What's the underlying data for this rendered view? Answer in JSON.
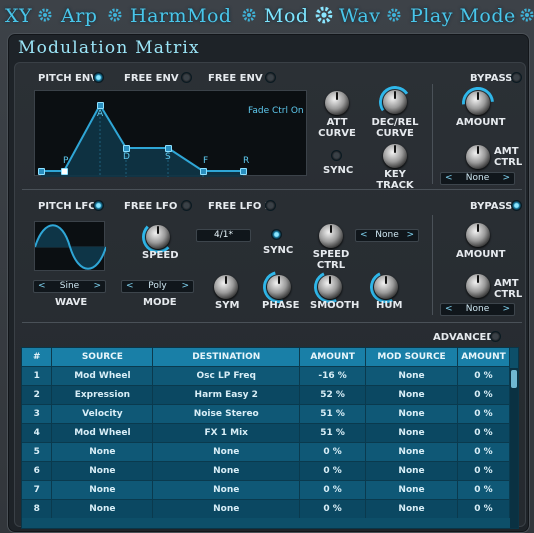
{
  "tabs": [
    {
      "label": "XY"
    },
    {
      "label": "Arp"
    },
    {
      "label": "HarmMod"
    },
    {
      "label": "Mod",
      "active": true
    },
    {
      "label": "Wav"
    },
    {
      "label": "Play Mode"
    }
  ],
  "title": "Modulation Matrix",
  "env": {
    "tabs": [
      "PITCH ENV",
      "FREE ENV 1",
      "FREE ENV 2"
    ],
    "selected": "PITCH ENV",
    "fade_label": "Fade Ctrl On",
    "points": [
      "P",
      "A",
      "D",
      "S",
      "F",
      "R"
    ],
    "knobs": {
      "att": [
        "ATT",
        "CURVE"
      ],
      "decrel": [
        "DEC/REL",
        "CURVE"
      ],
      "key": [
        "KEY",
        "TRACK"
      ]
    },
    "sync": "SYNC"
  },
  "env_bypass": {
    "bypass": "BYPASS",
    "amount": "AMOUNT",
    "amt": [
      "AMT",
      "CTRL"
    ],
    "select": "None"
  },
  "lfo": {
    "tabs": [
      "PITCH LFO",
      "FREE LFO 1",
      "FREE LFO 2"
    ],
    "selected": "PITCH LFO",
    "wave_value": "Sine",
    "wave": "WAVE",
    "mode_value": "Poly",
    "mode": "MODE",
    "speed": "SPEED",
    "rate": "4/1*",
    "sync": "SYNC",
    "speed_ctrl": [
      "SPEED",
      "CTRL"
    ],
    "speed_ctrl_select": "None",
    "sym": "SYM",
    "phase": "PHASE",
    "smooth": "SMOOTH",
    "hum": "HUM"
  },
  "lfo_bypass": {
    "bypass": "BYPASS",
    "amount": "AMOUNT",
    "amt": [
      "AMT",
      "CTRL"
    ],
    "select": "None"
  },
  "advanced": "ADVANCED",
  "columns": [
    "#",
    "SOURCE",
    "DESTINATION",
    "AMOUNT",
    "MOD SOURCE",
    "AMOUNT"
  ],
  "rows": [
    [
      "1",
      "Mod Wheel",
      "Osc LP Freq",
      "-16 %",
      "None",
      "0 %"
    ],
    [
      "2",
      "Expression",
      "Harm Easy 2",
      "52 %",
      "None",
      "0 %"
    ],
    [
      "3",
      "Velocity",
      "Noise Stereo",
      "51 %",
      "None",
      "0 %"
    ],
    [
      "4",
      "Mod Wheel",
      "FX 1 Mix",
      "51 %",
      "None",
      "0 %"
    ],
    [
      "5",
      "None",
      "None",
      "0 %",
      "None",
      "0 %"
    ],
    [
      "6",
      "None",
      "None",
      "0 %",
      "None",
      "0 %"
    ],
    [
      "7",
      "None",
      "None",
      "0 %",
      "None",
      "0 %"
    ],
    [
      "8",
      "None",
      "None",
      "0 %",
      "None",
      "0 %"
    ]
  ],
  "colors": {
    "accent": "#2fb7ea",
    "table_header": "#197fa7",
    "row_bg": "#0f5876"
  }
}
